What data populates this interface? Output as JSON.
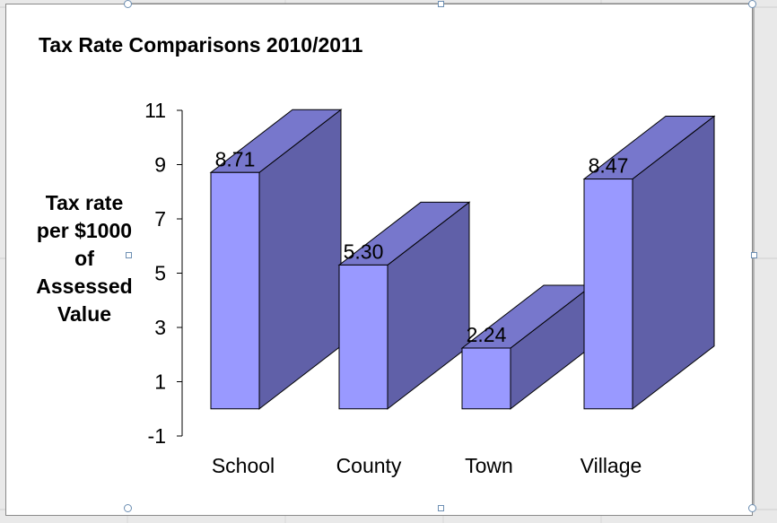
{
  "chart_data": {
    "type": "bar",
    "style": "3d",
    "title": "Tax Rate Comparisons 2010/2011",
    "ylabel_lines": [
      "Tax rate",
      "per $1000",
      "of",
      "Assessed",
      "Value"
    ],
    "xlabel": "",
    "categories": [
      "School",
      "County",
      "Town",
      "Village"
    ],
    "values": [
      8.71,
      5.3,
      2.24,
      8.47
    ],
    "data_labels": [
      "8.71",
      "5.30",
      "2.24",
      "8.47"
    ],
    "y_ticks": [
      11,
      9,
      7,
      5,
      3,
      1,
      -1
    ],
    "ylim": [
      -1,
      11
    ],
    "grid": false,
    "legend": "none"
  },
  "colors": {
    "bar_front": "#9999ff",
    "bar_top": "#7777cc",
    "bar_side": "#6060a8",
    "outline": "#000000"
  }
}
